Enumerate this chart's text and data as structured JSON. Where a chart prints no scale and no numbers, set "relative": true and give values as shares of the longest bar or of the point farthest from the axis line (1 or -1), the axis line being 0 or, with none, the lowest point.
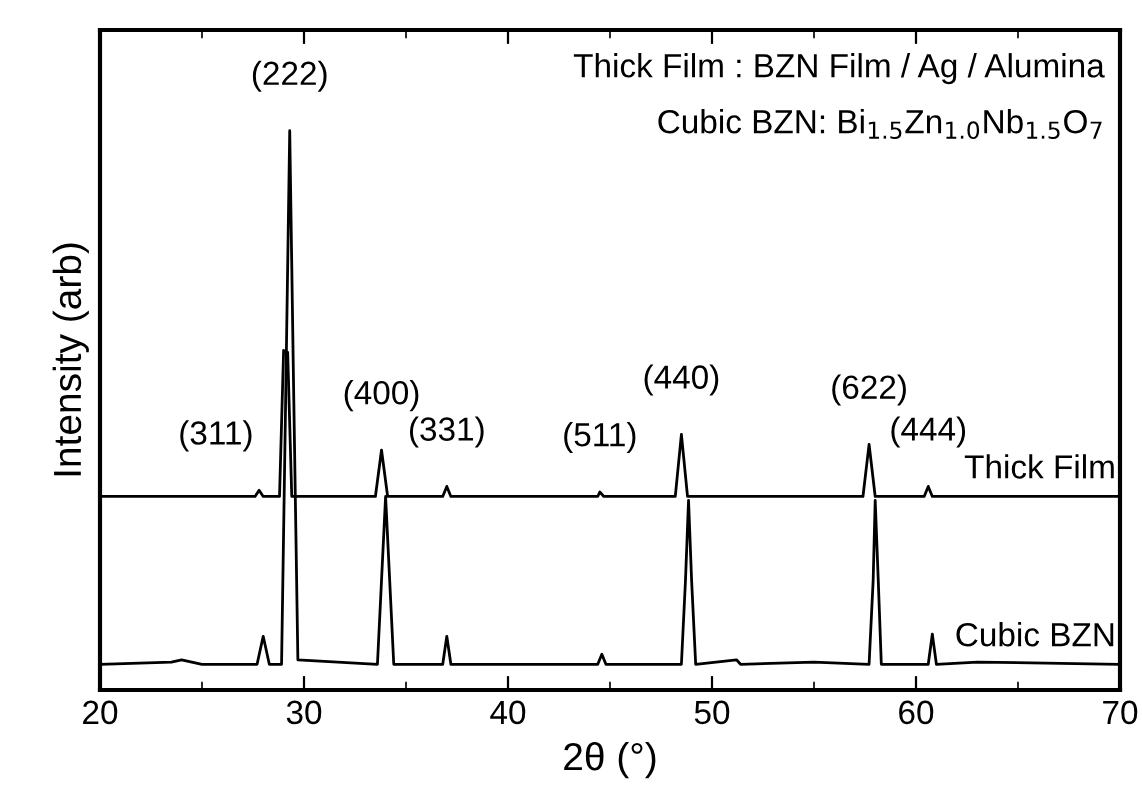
{
  "chart_data": {
    "type": "line",
    "relative": true,
    "xlabel": "2θ (°)",
    "ylabel": "Intensity (arb)",
    "xlim": [
      20,
      70
    ],
    "xticks": [
      20,
      30,
      40,
      50,
      60,
      70
    ],
    "grid": false,
    "legend": false,
    "marker": "none",
    "line_style": "solid",
    "tick_labels": "x",
    "series": [
      {
        "name": "Thick Film",
        "color": "#000000",
        "x": [
          20,
          27.6,
          27.8,
          28.0,
          28.8,
          29.0,
          29.2,
          29.4,
          33.5,
          33.8,
          34.1,
          36.8,
          37.0,
          37.2,
          44.4,
          44.5,
          44.7,
          48.2,
          48.5,
          48.8,
          57.4,
          57.7,
          58.0,
          60.4,
          60.6,
          60.8,
          70
        ],
        "values": [
          0.346,
          0.346,
          0.357,
          0.346,
          0.346,
          0.607,
          0.604,
          0.346,
          0.346,
          0.429,
          0.346,
          0.346,
          0.364,
          0.346,
          0.346,
          0.354,
          0.346,
          0.346,
          0.457,
          0.346,
          0.346,
          0.439,
          0.346,
          0.346,
          0.364,
          0.346,
          0.346
        ]
      },
      {
        "name": "Cubic BZN",
        "color": "#000000",
        "x": [
          20,
          23.5,
          24,
          25,
          27.7,
          28.0,
          28.3,
          28.9,
          29.1,
          29.3,
          29.5,
          29.7,
          33.6,
          33.8,
          34.0,
          34.2,
          34.4,
          36.8,
          37.0,
          37.2,
          44.4,
          44.6,
          44.8,
          48.5,
          48.7,
          48.85,
          49.0,
          49.2,
          51.2,
          51.4,
          55,
          57.7,
          57.9,
          58.0,
          58.15,
          58.3,
          60.6,
          60.8,
          61.0,
          63,
          70
        ],
        "values": [
          0.046,
          0.05,
          0.054,
          0.046,
          0.046,
          0.096,
          0.046,
          0.046,
          0.518,
          1.0,
          0.518,
          0.054,
          0.046,
          0.196,
          0.346,
          0.196,
          0.046,
          0.046,
          0.096,
          0.046,
          0.046,
          0.064,
          0.046,
          0.046,
          0.196,
          0.339,
          0.196,
          0.046,
          0.054,
          0.046,
          0.05,
          0.046,
          0.196,
          0.339,
          0.196,
          0.046,
          0.046,
          0.1,
          0.046,
          0.05,
          0.046
        ]
      }
    ],
    "annotations": [
      "Thick Film : BZN Film / Ag / Alumina",
      "Cubic BZN: Bi$_{1.5}$Zn$_{1.0}$Nb$_{1.5}$O$_{7}$",
      {
        "text": "(222)",
        "x": 29.3,
        "y": 1.0
      },
      {
        "text": "(311)",
        "x": 27.8,
        "y": 0.357
      },
      {
        "text": "(400)",
        "x": 33.8,
        "y": 0.429
      },
      {
        "text": "(331)",
        "x": 37.0,
        "y": 0.364
      },
      {
        "text": "(511)",
        "x": 44.5,
        "y": 0.354
      },
      {
        "text": "(440)",
        "x": 48.5,
        "y": 0.457
      },
      {
        "text": "(622)",
        "x": 57.7,
        "y": 0.439
      },
      {
        "text": "(444)",
        "x": 60.6,
        "y": 0.364
      }
    ]
  }
}
